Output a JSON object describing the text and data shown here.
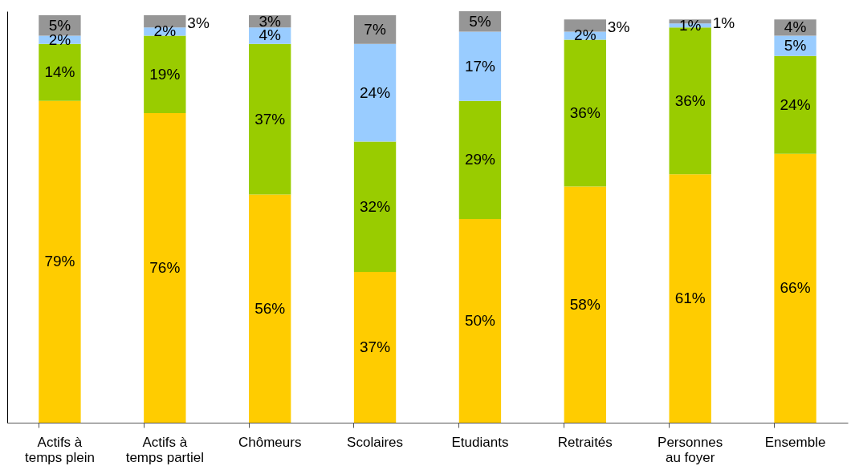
{
  "chart_data": {
    "type": "bar",
    "stacked": true,
    "categories": [
      "Actifs à temps plein",
      "Actifs à temps partiel",
      "Chômeurs",
      "Scolaires",
      "Etudiants",
      "Retraités",
      "Personnes au foyer",
      "Ensemble"
    ],
    "series": [
      {
        "color": "#ffcc00",
        "values": [
          79,
          76,
          56,
          37,
          50,
          58,
          61,
          66
        ],
        "value_labels": [
          "79%",
          "76%",
          "56%",
          "37%",
          "50%",
          "58%",
          "61%",
          "66%"
        ]
      },
      {
        "color": "#99cc00",
        "values": [
          14,
          19,
          37,
          32,
          29,
          36,
          36,
          24
        ],
        "value_labels": [
          "14%",
          "19%",
          "37%",
          "32%",
          "29%",
          "36%",
          "36%",
          "24%"
        ]
      },
      {
        "color": "#99ccff",
        "values": [
          2,
          2,
          4,
          24,
          17,
          2,
          1,
          5
        ],
        "value_labels": [
          "2%",
          "2%",
          "4%",
          "24%",
          "17%",
          "2%",
          "1%",
          "5%"
        ]
      },
      {
        "color": "#969696",
        "values": [
          5,
          3,
          3,
          7,
          5,
          3,
          1,
          4
        ],
        "value_labels": [
          "5%",
          "3%",
          "3%",
          "7%",
          "5%",
          "3%",
          "1%",
          "4%"
        ]
      }
    ],
    "ylim": [
      0,
      101
    ],
    "tick_labels": "x",
    "grid": false
  }
}
